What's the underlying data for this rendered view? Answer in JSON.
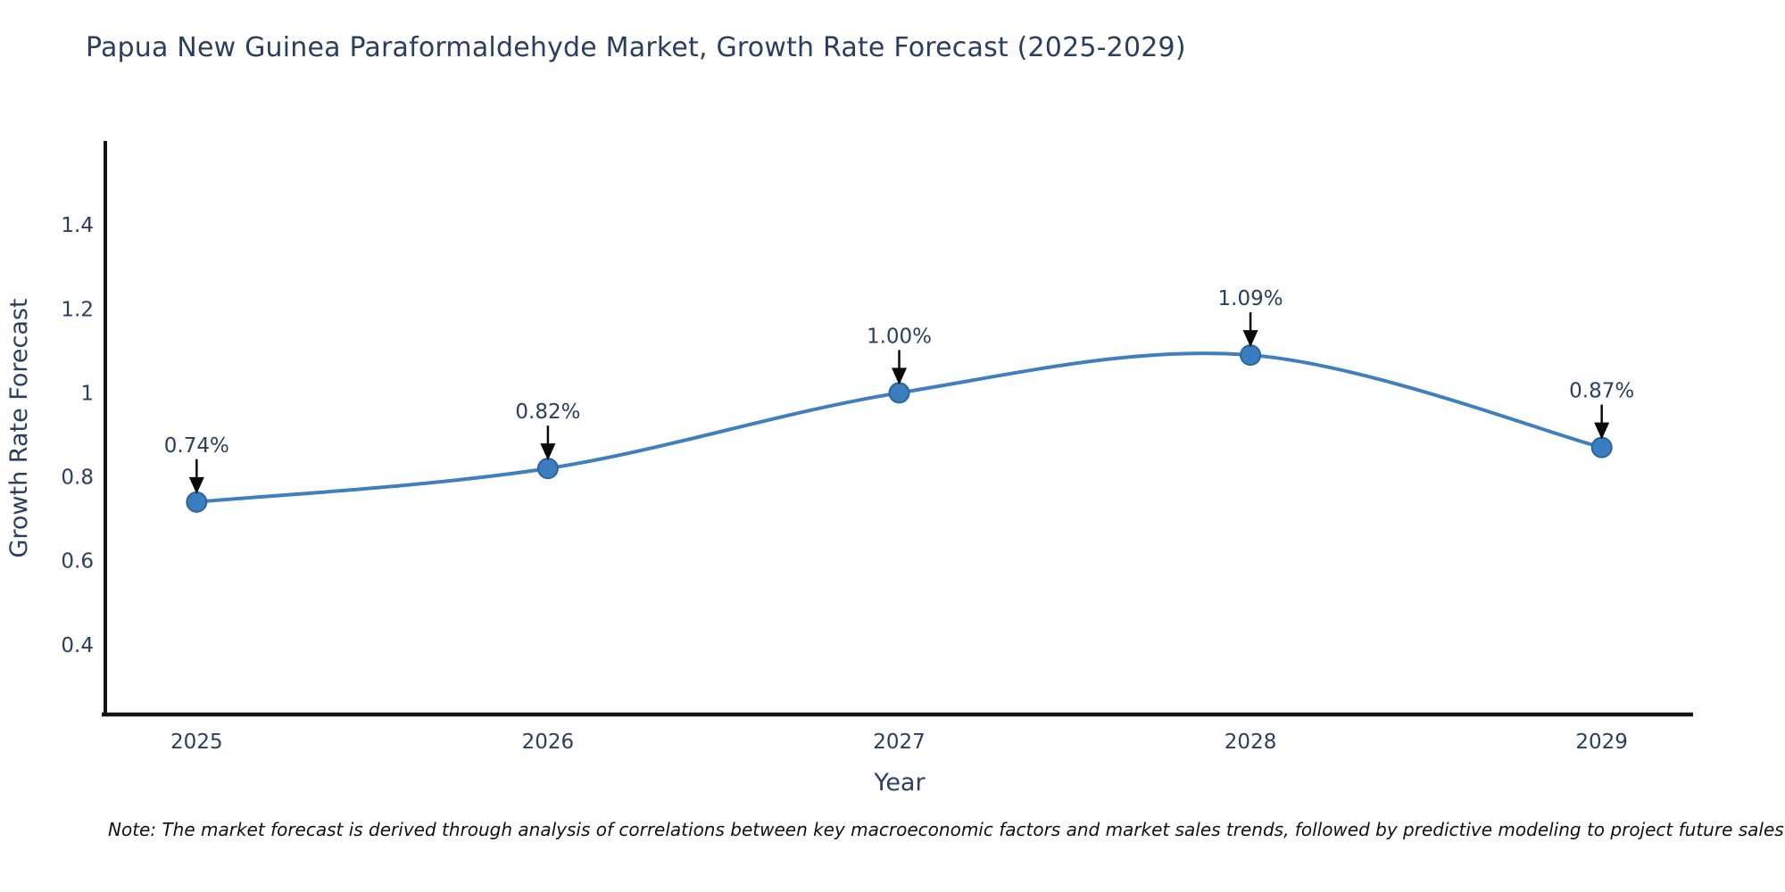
{
  "title": "Papua New Guinea Paraformaldehyde Market, Growth Rate Forecast (2025-2029)",
  "note": "Note: The market forecast is derived through analysis of correlations between key macroeconomic factors and market sales trends, followed by predictive modeling to project future sales",
  "chart_data": {
    "type": "line",
    "line_shape": "spline",
    "x": [
      2025,
      2026,
      2027,
      2028,
      2029
    ],
    "values": [
      0.74,
      0.82,
      1.0,
      1.09,
      0.87
    ],
    "point_labels": [
      "0.74%",
      "0.82%",
      "1.00%",
      "1.09%",
      "0.87%"
    ],
    "title": "Papua New Guinea Paraformaldehyde Market, Growth Rate Forecast (2025-2029)",
    "xlabel": "Year",
    "ylabel": "Growth Rate Forecast",
    "x_tick_labels": [
      "2025",
      "2026",
      "2027",
      "2028",
      "2029"
    ],
    "y_ticks": [
      0.4,
      0.6,
      0.8,
      1,
      1.2,
      1.4
    ],
    "y_tick_labels": [
      "0.4",
      "0.6",
      "0.8",
      "1",
      "1.2",
      "1.4"
    ],
    "xlim": [
      2024.74,
      2029.26
    ],
    "ylim": [
      0.234,
      1.6
    ],
    "grid": false,
    "legend": "none",
    "markers": true,
    "annotation_arrows": true,
    "colors": {
      "line": "#3f7fbf",
      "marker_fill": "#3a7ec0",
      "marker_edge": "#2c659c",
      "axis_line": "#131313",
      "tick_text": "#2a3f5f",
      "axis_label_text": "#2a3f5f",
      "annotation_text": "#2a3f5f",
      "arrow": "#0a0a0a",
      "title_text": "#2a3f5f",
      "note_text": "#111111",
      "background": "#ffffff"
    }
  }
}
